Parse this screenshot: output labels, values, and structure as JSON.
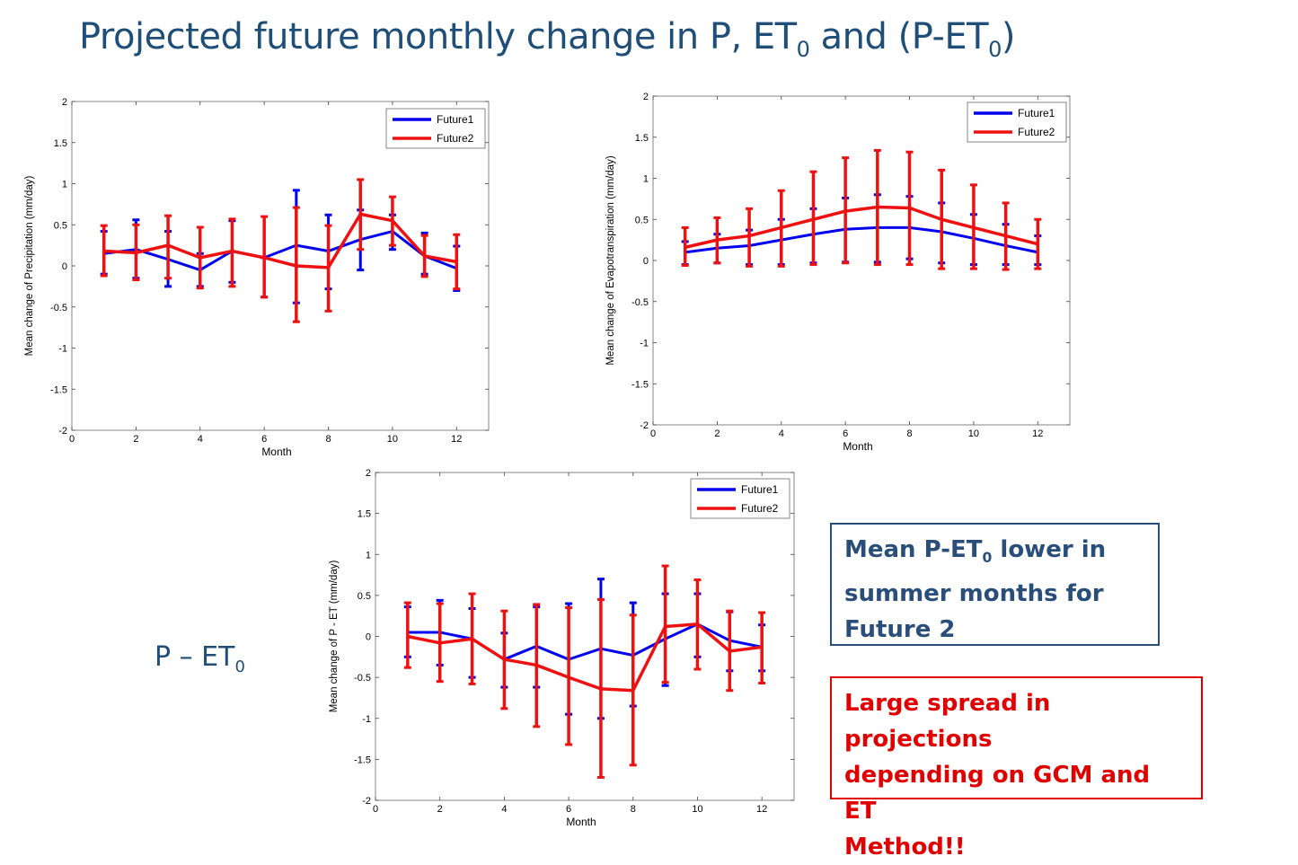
{
  "title": {
    "prefix": "Projected future monthly change in P,  ET",
    "sub1": "0",
    "mid": " and (P-ET",
    "sub2": "0",
    "suffix": ")"
  },
  "side_label": {
    "text": "P – ET",
    "sub": "0"
  },
  "callout_summer": {
    "line1a": "Mean P-ET",
    "line1sub": "0",
    "line1b": " lower in",
    "line2": "summer months for",
    "line3": "Future 2",
    "color": "#2a4e7a"
  },
  "callout_spread": {
    "line1": "Large spread in projections",
    "line2": "depending on GCM and ET",
    "line3": "Method!!",
    "color": "#e00000"
  },
  "chart_data": [
    {
      "id": "precip",
      "type": "line",
      "xlabel": "Month",
      "ylabel": "Mean change of Precipitation (mm/day)",
      "xlim": [
        0,
        13
      ],
      "ylim": [
        -2,
        2
      ],
      "xticks": [
        0,
        2,
        4,
        6,
        8,
        10,
        12
      ],
      "xtick_labels": [
        "0",
        "2",
        "4",
        "6",
        "8",
        "10",
        "12"
      ],
      "yticks": [
        -2,
        -1.5,
        -1,
        -0.5,
        0,
        0.5,
        1,
        1.5,
        2
      ],
      "ytick_labels": [
        "-2",
        "-1.5",
        "-1",
        "-0.5",
        "0",
        "0.5",
        "1",
        "1.5",
        "2"
      ],
      "legend_position": "top-right",
      "x": [
        1,
        2,
        3,
        4,
        5,
        6,
        7,
        8,
        9,
        10,
        11,
        12
      ],
      "series": [
        {
          "name": "Future1",
          "color": "#0000ee",
          "values": [
            0.15,
            0.2,
            0.08,
            -0.05,
            0.18,
            0.1,
            0.25,
            0.18,
            0.32,
            0.42,
            0.12,
            -0.03
          ],
          "err_low": [
            -0.1,
            -0.15,
            -0.25,
            -0.25,
            -0.2,
            -0.38,
            -0.45,
            -0.28,
            -0.05,
            0.2,
            -0.1,
            -0.3
          ],
          "err_high": [
            0.42,
            0.56,
            0.42,
            0.15,
            0.55,
            0.1,
            0.92,
            0.62,
            0.68,
            0.62,
            0.4,
            0.24
          ]
        },
        {
          "name": "Future2",
          "color": "#ee1111",
          "values": [
            0.18,
            0.16,
            0.25,
            0.1,
            0.18,
            0.1,
            0.0,
            -0.02,
            0.63,
            0.55,
            0.12,
            0.05
          ],
          "err_low": [
            -0.12,
            -0.17,
            -0.15,
            -0.27,
            -0.25,
            -0.38,
            -0.68,
            -0.55,
            0.2,
            0.25,
            -0.13,
            -0.28
          ],
          "err_high": [
            0.49,
            0.5,
            0.61,
            0.47,
            0.57,
            0.6,
            0.71,
            0.49,
            1.05,
            0.84,
            0.37,
            0.38
          ]
        }
      ]
    },
    {
      "id": "et",
      "type": "line",
      "xlabel": "Month",
      "ylabel": "Mean change of Evapotranspiration (mm/day)",
      "xlim": [
        0,
        13
      ],
      "ylim": [
        -2,
        2
      ],
      "xticks": [
        0,
        2,
        4,
        6,
        8,
        10,
        12
      ],
      "xtick_labels": [
        "0",
        "2",
        "4",
        "6",
        "8",
        "10",
        "12"
      ],
      "yticks": [
        -2,
        -1.5,
        -1,
        -0.5,
        0,
        0.5,
        1,
        1.5,
        2
      ],
      "ytick_labels": [
        "-2",
        "-1.5",
        "-1",
        "-0.5",
        "0",
        "0.5",
        "1",
        "1.5",
        "2"
      ],
      "legend_position": "top-right",
      "x": [
        1,
        2,
        3,
        4,
        5,
        6,
        7,
        8,
        9,
        10,
        11,
        12
      ],
      "series": [
        {
          "name": "Future1",
          "color": "#0000ee",
          "values": [
            0.1,
            0.15,
            0.18,
            0.25,
            0.32,
            0.38,
            0.4,
            0.4,
            0.35,
            0.27,
            0.18,
            0.1
          ],
          "err_low": [
            -0.05,
            -0.03,
            -0.05,
            -0.05,
            -0.03,
            -0.02,
            -0.02,
            0.02,
            -0.03,
            -0.05,
            -0.05,
            -0.05
          ],
          "err_high": [
            0.23,
            0.32,
            0.37,
            0.5,
            0.63,
            0.76,
            0.8,
            0.78,
            0.7,
            0.56,
            0.44,
            0.3
          ]
        },
        {
          "name": "Future2",
          "color": "#ee1111",
          "values": [
            0.16,
            0.25,
            0.3,
            0.4,
            0.5,
            0.6,
            0.65,
            0.64,
            0.5,
            0.4,
            0.3,
            0.2
          ],
          "err_low": [
            -0.06,
            -0.03,
            -0.07,
            -0.07,
            -0.05,
            -0.03,
            -0.05,
            -0.05,
            -0.1,
            -0.1,
            -0.11,
            -0.1
          ],
          "err_high": [
            0.4,
            0.52,
            0.63,
            0.85,
            1.08,
            1.25,
            1.34,
            1.32,
            1.1,
            0.92,
            0.7,
            0.5
          ]
        }
      ]
    },
    {
      "id": "pet",
      "type": "line",
      "xlabel": "Month",
      "ylabel": "Mean change of P - ET (mm/day)",
      "xlim": [
        0,
        13
      ],
      "ylim": [
        -2,
        2
      ],
      "xticks": [
        0,
        2,
        4,
        6,
        8,
        10,
        12
      ],
      "xtick_labels": [
        "0",
        "2",
        "4",
        "6",
        "8",
        "10",
        "12"
      ],
      "yticks": [
        -2,
        -1.5,
        -1,
        -0.5,
        0,
        0.5,
        1,
        1.5,
        2
      ],
      "ytick_labels": [
        "-2",
        "-1.5",
        "-1",
        "-0.5",
        "0",
        "0.5",
        "1",
        "1.5",
        "2"
      ],
      "legend_position": "top-right",
      "x": [
        1,
        2,
        3,
        4,
        5,
        6,
        7,
        8,
        9,
        10,
        11,
        12
      ],
      "series": [
        {
          "name": "Future1",
          "color": "#0000ee",
          "values": [
            0.05,
            0.05,
            -0.03,
            -0.28,
            -0.12,
            -0.28,
            -0.15,
            -0.23,
            -0.03,
            0.15,
            -0.05,
            -0.13
          ],
          "err_low": [
            -0.25,
            -0.35,
            -0.5,
            -0.62,
            -0.62,
            -0.95,
            -1.0,
            -0.85,
            -0.6,
            -0.25,
            -0.42,
            -0.42
          ],
          "err_high": [
            0.36,
            0.44,
            0.34,
            0.04,
            0.36,
            0.4,
            0.7,
            0.41,
            0.52,
            0.52,
            0.3,
            0.14
          ]
        },
        {
          "name": "Future2",
          "color": "#ee1111",
          "values": [
            0.0,
            -0.08,
            -0.03,
            -0.28,
            -0.35,
            -0.5,
            -0.64,
            -0.66,
            0.12,
            0.15,
            -0.18,
            -0.13
          ],
          "err_low": [
            -0.38,
            -0.55,
            -0.58,
            -0.88,
            -1.1,
            -1.32,
            -1.72,
            -1.57,
            -0.56,
            -0.4,
            -0.66,
            -0.57
          ],
          "err_high": [
            0.41,
            0.4,
            0.52,
            0.31,
            0.39,
            0.35,
            0.45,
            0.26,
            0.86,
            0.69,
            0.31,
            0.29
          ]
        }
      ]
    }
  ]
}
